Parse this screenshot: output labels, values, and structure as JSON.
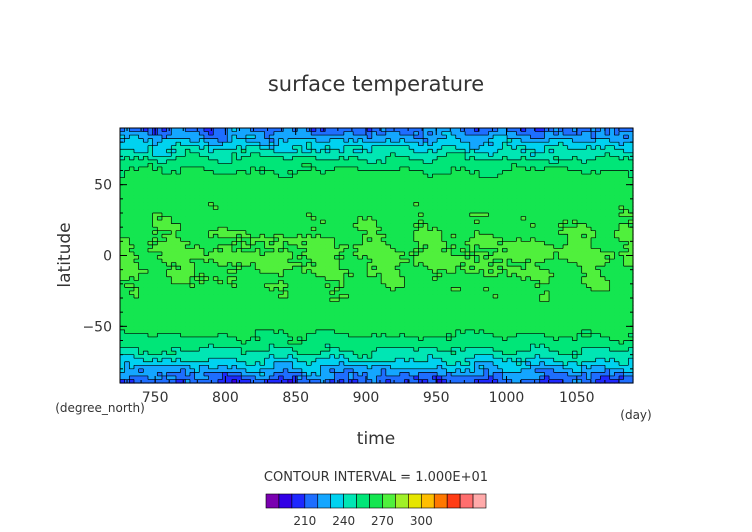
{
  "chart_data": {
    "type": "heatmap",
    "title": "surface temperature",
    "xlabel": "time",
    "ylabel": "latitude",
    "x_unit": "(day)",
    "y_unit": "(degree_north)",
    "x_range": [
      725,
      1090
    ],
    "y_range": [
      -90,
      90
    ],
    "x_ticks": [
      "750",
      "800",
      "850",
      "900",
      "950",
      "1000",
      "1050"
    ],
    "y_ticks": [
      "50",
      "0",
      "−50"
    ],
    "contour_interval_text": "CONTOUR INTERVAL = 1.000E+01",
    "colorbar": {
      "tick_labels": [
        "210",
        "240",
        "270",
        "300"
      ],
      "colors": [
        "#7a00b0",
        "#3200e6",
        "#1e28ff",
        "#1e6eff",
        "#14a6ff",
        "#00d2f0",
        "#00e6b4",
        "#00e678",
        "#14e650",
        "#50f03c",
        "#a0f028",
        "#e6e600",
        "#ffbe00",
        "#ff7800",
        "#ff3c14",
        "#ff6e6e",
        "#ffaaaa"
      ],
      "start": 180,
      "step": 10
    },
    "latitude_profile": [
      {
        "lat": 90,
        "value": 215
      },
      {
        "lat": 85,
        "value": 222
      },
      {
        "lat": 80,
        "value": 232
      },
      {
        "lat": 75,
        "value": 240
      },
      {
        "lat": 70,
        "value": 248
      },
      {
        "lat": 65,
        "value": 255
      },
      {
        "lat": 60,
        "value": 260
      },
      {
        "lat": 50,
        "value": 265
      },
      {
        "lat": 30,
        "value": 268
      },
      {
        "lat": 0,
        "value": 271
      },
      {
        "lat": -30,
        "value": 268
      },
      {
        "lat": -50,
        "value": 263
      },
      {
        "lat": -60,
        "value": 258
      },
      {
        "lat": -65,
        "value": 252
      },
      {
        "lat": -70,
        "value": 246
      },
      {
        "lat": -75,
        "value": 238
      },
      {
        "lat": -80,
        "value": 228
      },
      {
        "lat": -85,
        "value": 218
      },
      {
        "lat": -90,
        "value": 210
      }
    ],
    "colors": {
      "axis": "#000000",
      "contour": "#000000",
      "text": "#333333"
    }
  }
}
